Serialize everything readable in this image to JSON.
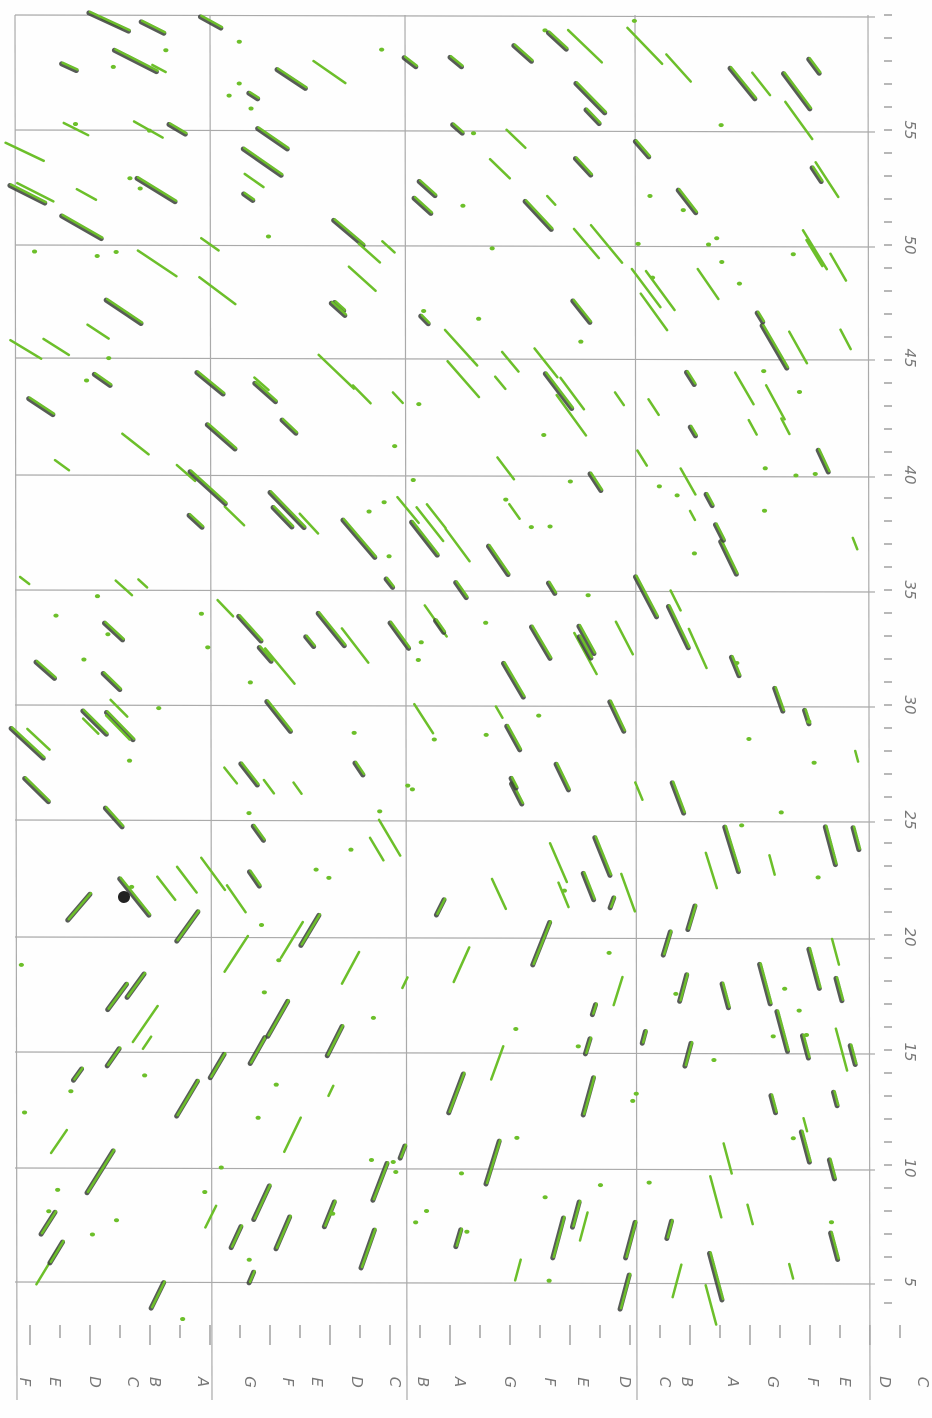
{
  "scale_labels": [
    "55",
    "50",
    "45",
    "40",
    "35",
    "30",
    "25",
    "20",
    "15",
    "10",
    "5"
  ],
  "bottom_labels": [
    "F",
    "E",
    "D",
    "C",
    "B",
    "A",
    "G",
    "F",
    "E",
    "D",
    "C",
    "B",
    "A",
    "G",
    "F",
    "E",
    "D",
    "C",
    "B",
    "A",
    "G",
    "F",
    "E",
    "D",
    "C"
  ]
}
